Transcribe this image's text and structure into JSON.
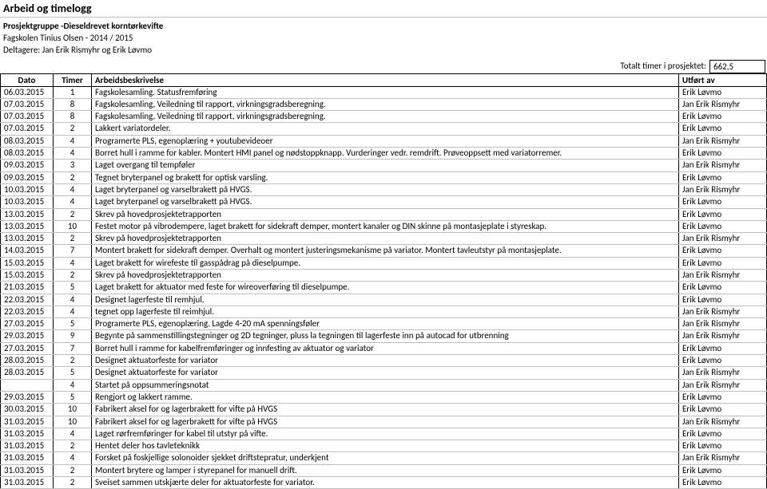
{
  "sheet_title": "Arbeid og timelogg",
  "project_group": "Prosjektgruppe -Dieseldrevet korntørkevifte",
  "school": "Fagskolen Tinius Olsen - 2014 / 2015",
  "participants": "Deltagere: Jan Erik Rismyhr og Erik Løvmo",
  "totals": {
    "label": "Totalt timer i prosjektet:",
    "value": "662,5"
  },
  "columns": {
    "date": "Dato",
    "hours": "Timer",
    "desc": "Arbeidsbeskrivelse",
    "by": "Utført av"
  },
  "rows": [
    {
      "date": "06.03.2015",
      "hours": "1",
      "desc": "Fagskolesamling. Statusfremføring",
      "by": "Erik Løvmo"
    },
    {
      "date": "07.03.2015",
      "hours": "8",
      "desc": "Fagskolesamling, Veiledning til rapport, virkningsgradsberegning.",
      "by": "Jan Erik Rismyhr"
    },
    {
      "date": "07.03.2015",
      "hours": "8",
      "desc": "Fagskolesamling, Veiledning til rapport, virkningsgradsberegning.",
      "by": "Erik Løvmo"
    },
    {
      "date": "07.03.2015",
      "hours": "2",
      "desc": "Lakkert variatordeler.",
      "by": "Erik Løvmo"
    },
    {
      "date": "08.03.2015",
      "hours": "4",
      "desc": "Programerte PLS, egenoplæring + youtubevideoer",
      "by": "Jan Erik Rismyhr"
    },
    {
      "date": "08.03.2015",
      "hours": "4",
      "desc": "Borret hull i ramme for kabler. Montert HMI panel og nødstoppknapp. Vurderinger vedr. remdrift. Prøveoppsett med variatorremer.",
      "by": "Erik Løvmo"
    },
    {
      "date": "09.03.2015",
      "hours": "3",
      "desc": "Laget overgang til tempføler",
      "by": "Jan Erik Rismyhr"
    },
    {
      "date": "09.03.2015",
      "hours": "2",
      "desc": "Tegnet bryterpanel og brakett for optisk varsling.",
      "by": "Erik Løvmo"
    },
    {
      "date": "10.03.2015",
      "hours": "4",
      "desc": "Laget bryterpanel og varselbrakett på HVGS.",
      "by": "Jan Erik Rismyhr"
    },
    {
      "date": "10.03.2015",
      "hours": "4",
      "desc": "Laget bryterpanel og varselbrakett på HVGS.",
      "by": "Erik Løvmo"
    },
    {
      "date": "13.03.2015",
      "hours": "2",
      "desc": "Skrev på hovedprosjektetrapporten",
      "by": "Erik Løvmo"
    },
    {
      "date": "13.03.2015",
      "hours": "10",
      "desc": "Festet motor på vibrodempere, laget brakett for sidekraft demper, montert kanaler og DIN skinne på montasjeplate i styreskap.",
      "by": "Erik Løvmo"
    },
    {
      "date": "13.03.2015",
      "hours": "2",
      "desc": "Skrev på hovedprosjektetrapporten",
      "by": "Jan Erik Rismyhr"
    },
    {
      "date": "14.03.2015",
      "hours": "7",
      "desc": "Montert brakett for sidekraft demper. Overhalt og montert justeringsmekanisme på variator. Montert tavleutstyr på montasjeplate.",
      "by": "Erik Løvmo"
    },
    {
      "date": "15.03.2015",
      "hours": "4",
      "desc": "Laget brakett for wirefeste til gasspådrag på dieselpumpe.",
      "by": "Erik Løvmo"
    },
    {
      "date": "15.03.2015",
      "hours": "2",
      "desc": "Skrev på hovedprosjektetrapporten",
      "by": "Jan Erik Rismyhr"
    },
    {
      "date": "21.03.2015",
      "hours": "5",
      "desc": "Laget brakett for aktuator med feste for wireoverføring til dieselpumpe.",
      "by": "Erik Løvmo"
    },
    {
      "date": "22.03.2015",
      "hours": "4",
      "desc": "Designet lagerfeste til remhjul.",
      "by": "Erik Løvmo"
    },
    {
      "date": "22.03.2015",
      "hours": "4",
      "desc": "tegnet opp lagerfeste til reimhjul.",
      "by": "Jan Erik Rismyhr"
    },
    {
      "date": "27.03.2015",
      "hours": "5",
      "desc": "Programerte PLS, egenoplæring. Lagde 4-20 mA spenningsføler",
      "by": "Jan Erik Rismyhr"
    },
    {
      "date": "29.03.2015",
      "hours": "9",
      "desc": "Begynte på sammenstillingstegninger og 2D tegninger, pluss la tegningen til lagerfeste inn på autocad for utbrenning",
      "by": "Jan Erik Rismyhr"
    },
    {
      "date": "27.03.2015",
      "hours": "7",
      "desc": "Borret hull i ramme for kabelfremføringer og innfesting av aktuator og variator",
      "by": "Erik Løvmo"
    },
    {
      "date": "28.03.2015",
      "hours": "2",
      "desc": "Designet aktuatorfeste for variator",
      "by": "Erik Løvmo"
    },
    {
      "date": "28.03.2015",
      "hours": "5",
      "desc": "Designet aktuatorfeste for variator",
      "by": "Jan Erik Rismyhr"
    },
    {
      "date": "",
      "hours": "4",
      "desc": "Startet på oppsummeringsnotat",
      "by": "Jan Erik Rismyhr"
    },
    {
      "date": "29.03.2015",
      "hours": "5",
      "desc": "Rengjort og lakkert ramme.",
      "by": "Erik Løvmo"
    },
    {
      "date": "30.03.2015",
      "hours": "10",
      "desc": "Fabrikert aksel for og lagerbrakett for vifte på HVGS",
      "by": "Erik Løvmo"
    },
    {
      "date": "31.03.2015",
      "hours": "10",
      "desc": "Fabrikert aksel for og lagerbrakett for vifte på HVGS",
      "by": "Jan Erik Rismyhr"
    },
    {
      "date": "31.03.2015",
      "hours": "4",
      "desc": "Laget rørfremføringer for kabel til utstyr på vifte.",
      "by": "Erik Løvmo"
    },
    {
      "date": "31.03.2015",
      "hours": "2",
      "desc": "Hentet deler hos tavleteknikk",
      "by": "Erik Løvmo"
    },
    {
      "date": "31.03.2015",
      "hours": "4",
      "desc": "Forsket på foskjellige solonoider sjekket driftstepratur, underkjent",
      "by": "Jan Erik Rismyhr"
    },
    {
      "date": "31.03.2015",
      "hours": "2",
      "desc": "Montert brytere og lamper i styrepanel for manuell drift.",
      "by": "Erik Løvmo"
    },
    {
      "date": "31.03.2015",
      "hours": "2",
      "desc": "Sveiset sammen utskjærte deler for aktuatorfeste for variator.",
      "by": "Erik Løvmo"
    }
  ]
}
